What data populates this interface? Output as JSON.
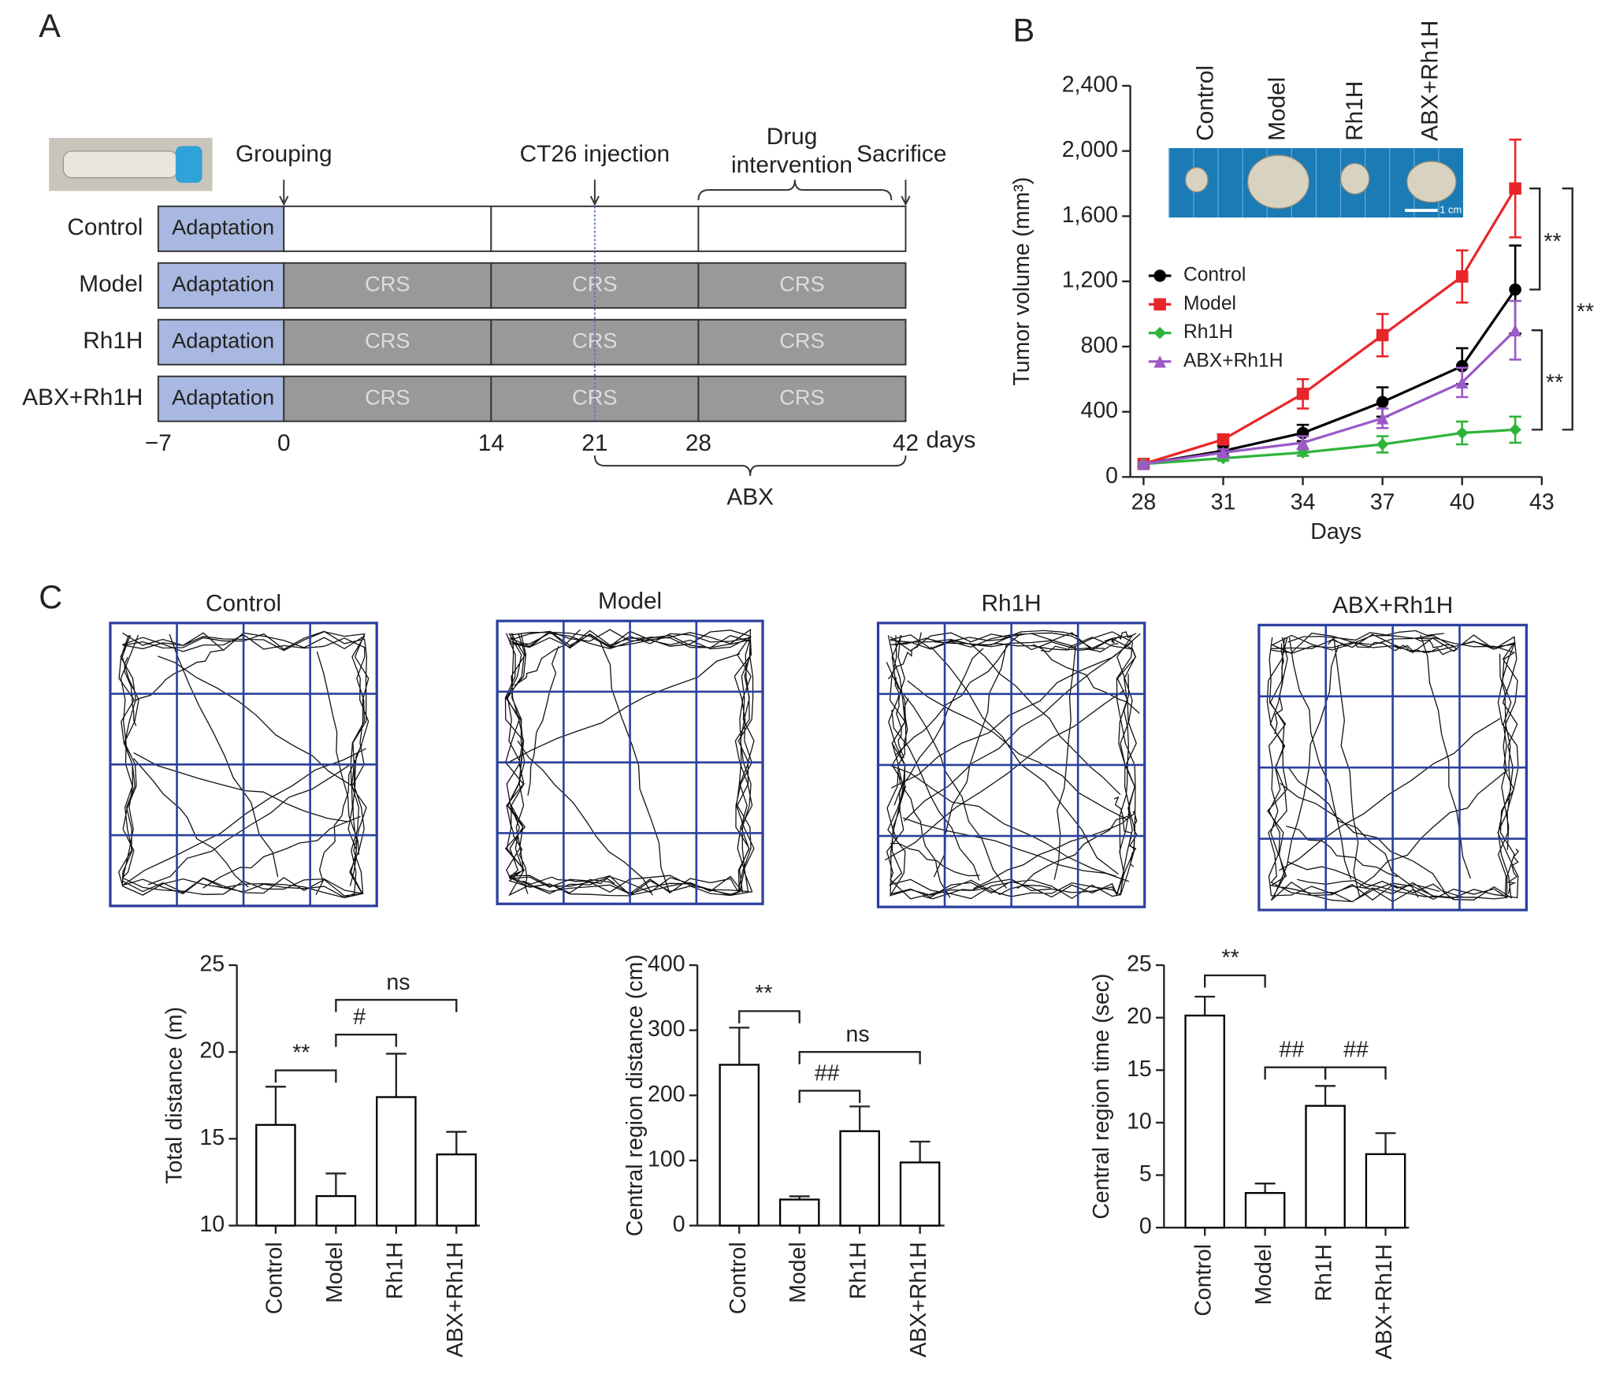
{
  "panels": [
    "A",
    "B",
    "C"
  ],
  "timeline": {
    "groups": [
      {
        "name": "Control",
        "crs": false
      },
      {
        "name": "Model",
        "crs": true
      },
      {
        "name": "Rh1H",
        "crs": true
      },
      {
        "name": "ABX+Rh1H",
        "crs": true
      }
    ],
    "adaptation": "Adaptation",
    "stress": "CRS",
    "crs_days": [
      0,
      14,
      28,
      42
    ],
    "events": [
      {
        "label": "Grouping",
        "day": 0
      },
      {
        "label": "CT26 injection",
        "day": 21
      },
      {
        "label": "Sacrifice",
        "day": 42
      }
    ],
    "drug": {
      "lines": [
        "Drug",
        "intervention"
      ],
      "days": [
        28,
        42
      ]
    },
    "ticks": [
      {
        "value": -7,
        "label": "−7"
      },
      0,
      14,
      21,
      28,
      42
    ],
    "unit": "days",
    "abx": {
      "label": "ABX",
      "days": [
        21,
        42
      ]
    }
  },
  "open_field": {
    "titles": [
      "Control",
      "Model",
      "Rh1H",
      "ABX+Rh1H"
    ]
  },
  "chart_data": [
    {
      "type": "line",
      "xlabel": "Days",
      "ylabel": "Tumor volume (mm³)",
      "x": [
        28,
        31,
        34,
        37,
        40,
        42
      ],
      "xlim": [
        27.5,
        43
      ],
      "xticks": [
        28,
        31,
        34,
        37,
        40,
        43
      ],
      "ylim": [
        0,
        2400
      ],
      "yticks": [
        0,
        400,
        800,
        {
          "value": 1200,
          "label": "1,200"
        },
        {
          "value": 1600,
          "label": "1,600"
        },
        {
          "value": 2000,
          "label": "2,000"
        },
        {
          "value": 2400,
          "label": "2,400"
        }
      ],
      "series": [
        {
          "name": "Control",
          "color": "#000000",
          "marker": "circle",
          "values": [
            80,
            160,
            270,
            460,
            680,
            1150
          ],
          "errors": [
            15,
            30,
            50,
            90,
            110,
            270
          ]
        },
        {
          "name": "Model",
          "color": "#e8262a",
          "marker": "square",
          "values": [
            80,
            230,
            510,
            870,
            1230,
            1770
          ],
          "errors": [
            15,
            30,
            90,
            130,
            160,
            300
          ]
        },
        {
          "name": "Rh1H",
          "color": "#2fb43a",
          "marker": "diamond",
          "values": [
            80,
            115,
            150,
            200,
            270,
            290
          ],
          "errors": [
            10,
            15,
            20,
            50,
            70,
            80
          ]
        },
        {
          "name": "ABX+Rh1H",
          "color": "#9b59c6",
          "marker": "triangle",
          "values": [
            80,
            150,
            210,
            360,
            580,
            900
          ],
          "errors": [
            10,
            20,
            40,
            60,
            90,
            180
          ]
        }
      ],
      "legend": "left",
      "inset": {
        "labels": [
          "Control",
          "Model",
          "Rh1H",
          "ABX+Rh1H"
        ],
        "scale": "1 cm"
      },
      "annotations": [
        "**",
        "**",
        "**"
      ]
    },
    {
      "type": "bar",
      "ylabel": "Total distance (m)",
      "categories": [
        "Control",
        "Model",
        "Rh1H",
        "ABX+Rh1H"
      ],
      "values": [
        15.8,
        11.7,
        17.4,
        14.1
      ],
      "errors": [
        2.2,
        1.3,
        2.5,
        1.3
      ],
      "ylim": [
        10,
        25
      ],
      "yticks": [
        10,
        15,
        20,
        25
      ],
      "color": "#ffffff",
      "edgecolor": "#000000",
      "annotations": [
        "**",
        "#",
        "ns"
      ]
    },
    {
      "type": "bar",
      "ylabel": "Central region distance (cm)",
      "categories": [
        "Control",
        "Model",
        "Rh1H",
        "ABX+Rh1H"
      ],
      "values": [
        247,
        40,
        145,
        97
      ],
      "errors": [
        57,
        5,
        38,
        32
      ],
      "ylim": [
        0,
        400
      ],
      "yticks": [
        0,
        100,
        200,
        300,
        400
      ],
      "color": "#ffffff",
      "edgecolor": "#000000",
      "annotations": [
        "**",
        "##",
        "ns"
      ]
    },
    {
      "type": "bar",
      "ylabel": "Central region time (sec)",
      "categories": [
        "Control",
        "Model",
        "Rh1H",
        "ABX+Rh1H"
      ],
      "values": [
        20.2,
        3.3,
        11.6,
        7.0
      ],
      "errors": [
        1.8,
        0.9,
        1.9,
        2.0
      ],
      "ylim": [
        0,
        25
      ],
      "yticks": [
        0,
        5,
        10,
        15,
        20,
        25
      ],
      "color": "#ffffff",
      "edgecolor": "#000000",
      "annotations": [
        "**",
        "##",
        "##"
      ]
    }
  ]
}
